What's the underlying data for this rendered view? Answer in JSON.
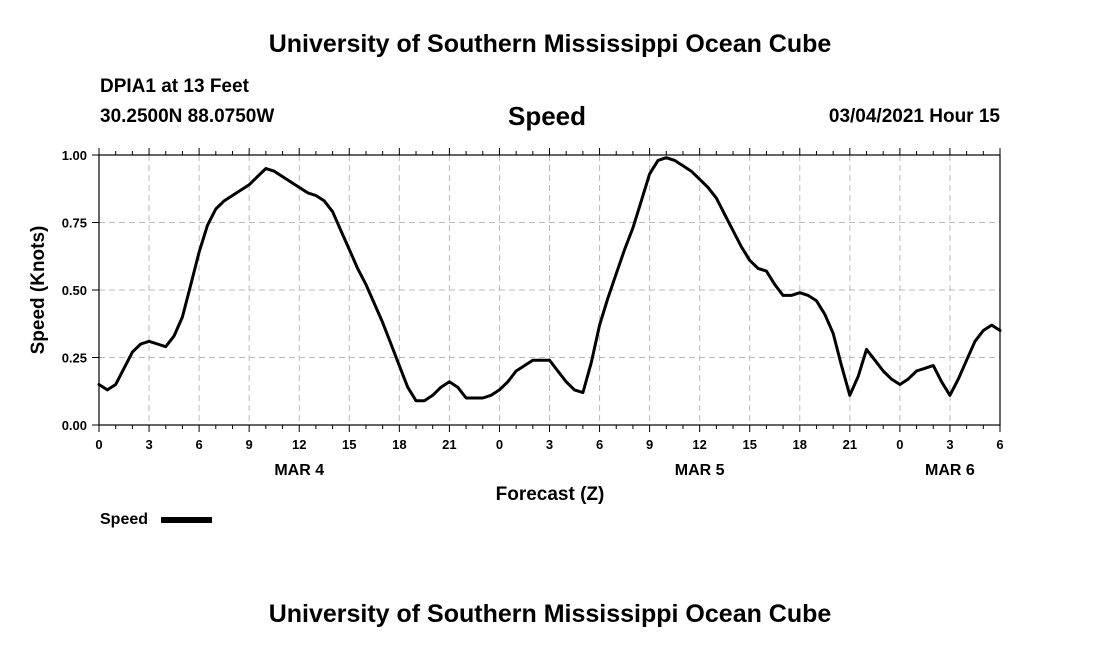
{
  "header": {
    "title_top": "University of Southern Mississippi Ocean Cube",
    "station": "DPIA1 at 13 Feet",
    "coords": "30.2500N 88.0750W",
    "plot_title": "Speed",
    "datetime": "03/04/2021 Hour 15",
    "title_bottom": "University of Southern Mississippi Ocean Cube"
  },
  "legend": {
    "label": "Speed"
  },
  "colors": {
    "line": "#000000",
    "grid": "#bbbbbb"
  },
  "chart_data": {
    "type": "line",
    "title": "Speed",
    "xlabel": "Forecast (Z)",
    "ylabel": "Speed (Knots)",
    "ylim": [
      0,
      1
    ],
    "xlim": [
      0,
      54
    ],
    "x_ticks": [
      0,
      3,
      6,
      9,
      12,
      15,
      18,
      21,
      24,
      27,
      30,
      33,
      36,
      39,
      42,
      45,
      48,
      51,
      54
    ],
    "x_tick_labels": [
      "0",
      "3",
      "6",
      "9",
      "12",
      "15",
      "18",
      "21",
      "0",
      "3",
      "6",
      "9",
      "12",
      "15",
      "18",
      "21",
      "0",
      "3",
      "6"
    ],
    "date_labels": [
      {
        "label": "MAR 4",
        "x": 12
      },
      {
        "label": "MAR 5",
        "x": 36
      },
      {
        "label": "MAR 6",
        "x": 51
      }
    ],
    "y_ticks": [
      0,
      0.25,
      0.5,
      0.75,
      1.0
    ],
    "y_tick_labels": [
      "0.00",
      "0.25",
      "0.50",
      "0.75",
      "1.00"
    ],
    "grid": true,
    "legend_position": "bottom-left",
    "series": [
      {
        "name": "Speed",
        "x": [
          0,
          0.5,
          1,
          1.5,
          2,
          2.5,
          3,
          3.5,
          4,
          4.5,
          5,
          5.5,
          6,
          6.5,
          7,
          7.5,
          8,
          8.5,
          9,
          9.5,
          10,
          10.5,
          11,
          11.5,
          12,
          12.5,
          13,
          13.5,
          14,
          14.5,
          15,
          15.5,
          16,
          16.5,
          17,
          17.5,
          18,
          18.5,
          19,
          19.5,
          20,
          20.5,
          21,
          21.5,
          22,
          22.5,
          23,
          23.5,
          24,
          24.5,
          25,
          25.5,
          26,
          26.5,
          27,
          27.5,
          28,
          28.5,
          29,
          29.5,
          30,
          30.5,
          31,
          31.5,
          32,
          32.5,
          33,
          33.5,
          34,
          34.5,
          35,
          35.5,
          36,
          36.5,
          37,
          37.5,
          38,
          38.5,
          39,
          39.5,
          40,
          40.5,
          41,
          41.5,
          42,
          42.5,
          43,
          43.5,
          44,
          44.5,
          45,
          45.5,
          46,
          46.5,
          47,
          47.5,
          48,
          48.5,
          49,
          49.5,
          50,
          50.5,
          51,
          51.5,
          52,
          52.5,
          53,
          53.5,
          54
        ],
        "values": [
          0.15,
          0.13,
          0.15,
          0.21,
          0.27,
          0.3,
          0.31,
          0.3,
          0.29,
          0.33,
          0.4,
          0.52,
          0.64,
          0.74,
          0.8,
          0.83,
          0.85,
          0.87,
          0.89,
          0.92,
          0.95,
          0.94,
          0.92,
          0.9,
          0.88,
          0.86,
          0.85,
          0.83,
          0.79,
          0.72,
          0.65,
          0.58,
          0.52,
          0.45,
          0.38,
          0.3,
          0.22,
          0.14,
          0.09,
          0.09,
          0.11,
          0.14,
          0.16,
          0.14,
          0.1,
          0.1,
          0.1,
          0.11,
          0.13,
          0.16,
          0.2,
          0.22,
          0.24,
          0.24,
          0.24,
          0.2,
          0.16,
          0.13,
          0.12,
          0.23,
          0.37,
          0.47,
          0.56,
          0.65,
          0.73,
          0.83,
          0.93,
          0.98,
          0.99,
          0.98,
          0.96,
          0.94,
          0.91,
          0.88,
          0.84,
          0.78,
          0.72,
          0.66,
          0.61,
          0.58,
          0.57,
          0.52,
          0.48,
          0.48,
          0.49,
          0.48,
          0.46,
          0.41,
          0.34,
          0.22,
          0.11,
          0.18,
          0.28,
          0.24,
          0.2,
          0.17,
          0.15,
          0.17,
          0.2,
          0.21,
          0.22,
          0.16,
          0.11,
          0.17,
          0.24,
          0.31,
          0.35,
          0.37,
          0.35
        ]
      }
    ]
  }
}
